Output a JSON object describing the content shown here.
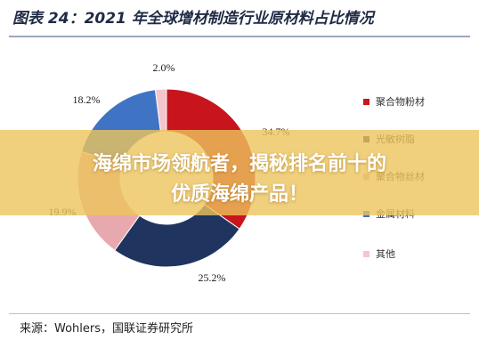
{
  "figure": {
    "title": "图表 24：2021 年全球增材制造行业原材料占比情况",
    "source": "来源：Wohlers，国联证券研究所"
  },
  "chart_data": {
    "type": "pie",
    "title": "2021 年全球增材制造行业原材料占比情况",
    "slices": [
      {
        "label": "聚合物粉材",
        "value": 34.7,
        "value_label": "34.7%",
        "color": "#c8151d"
      },
      {
        "label": "光敏树脂",
        "value": 25.2,
        "value_label": "25.2%",
        "color": "#1f3560"
      },
      {
        "label": "聚合物丝材",
        "value": 19.9,
        "value_label": "19.9%",
        "color": "#e8a9ae"
      },
      {
        "label": "金属材料",
        "value": 18.2,
        "value_label": "18.2%",
        "color": "#3f73c4"
      },
      {
        "label": "其他",
        "value": 2.0,
        "value_label": "2.0%",
        "color": "#f2c6cc"
      }
    ],
    "legend_placement": "right",
    "donut": true
  },
  "overlay": {
    "line1": "海绵市场领航者，揭秘排名前十的",
    "line2": "优质海绵产品！"
  }
}
